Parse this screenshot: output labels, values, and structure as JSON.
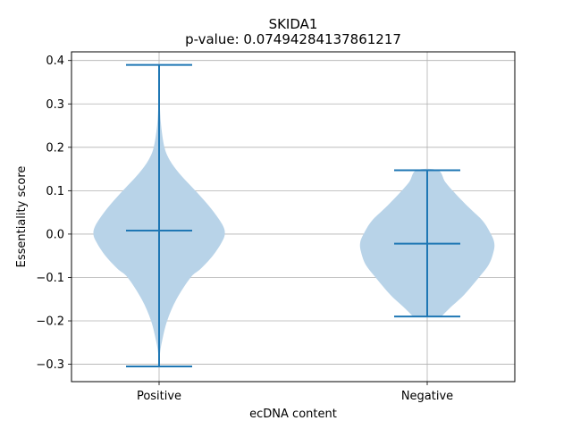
{
  "chart_data": {
    "type": "violin",
    "title": "SKIDA1",
    "subtitle": "p-value: 0.07494284137861217",
    "xlabel": "ecDNA content",
    "ylabel": "Essentiality score",
    "categories": [
      "Positive",
      "Negative"
    ],
    "ylim": [
      -0.34,
      0.42
    ],
    "yticks": [
      -0.3,
      -0.2,
      -0.1,
      0.0,
      0.1,
      0.2,
      0.3,
      0.4
    ],
    "ytick_labels": [
      "−0.3",
      "−0.2",
      "−0.1",
      "0.0",
      "0.1",
      "0.2",
      "0.3",
      "0.4"
    ],
    "grid": true,
    "colors": {
      "body": "#b8d3e8",
      "lines": "#1f77b4",
      "grid": "#b0b0b0"
    },
    "violins": [
      {
        "category": "Positive",
        "min": -0.305,
        "max": 0.39,
        "median": 0.008,
        "density": [
          [
            -0.305,
            0.0
          ],
          [
            -0.28,
            0.01
          ],
          [
            -0.25,
            0.04
          ],
          [
            -0.2,
            0.12
          ],
          [
            -0.15,
            0.26
          ],
          [
            -0.1,
            0.47
          ],
          [
            -0.08,
            0.62
          ],
          [
            -0.05,
            0.8
          ],
          [
            -0.02,
            0.93
          ],
          [
            0.0,
            0.98
          ],
          [
            0.02,
            0.95
          ],
          [
            0.05,
            0.82
          ],
          [
            0.08,
            0.66
          ],
          [
            0.11,
            0.48
          ],
          [
            0.14,
            0.3
          ],
          [
            0.17,
            0.16
          ],
          [
            0.2,
            0.08
          ],
          [
            0.25,
            0.03
          ],
          [
            0.3,
            0.01
          ],
          [
            0.35,
            0.0
          ],
          [
            0.39,
            0.0
          ]
        ]
      },
      {
        "category": "Negative",
        "min": -0.19,
        "max": 0.147,
        "median": -0.022,
        "density": [
          [
            -0.19,
            0.21
          ],
          [
            -0.17,
            0.34
          ],
          [
            -0.14,
            0.55
          ],
          [
            -0.1,
            0.77
          ],
          [
            -0.07,
            0.92
          ],
          [
            -0.04,
            0.99
          ],
          [
            -0.02,
            1.0
          ],
          [
            0.0,
            0.95
          ],
          [
            0.03,
            0.83
          ],
          [
            0.06,
            0.63
          ],
          [
            0.09,
            0.44
          ],
          [
            0.12,
            0.27
          ],
          [
            0.147,
            0.16
          ]
        ]
      }
    ]
  }
}
